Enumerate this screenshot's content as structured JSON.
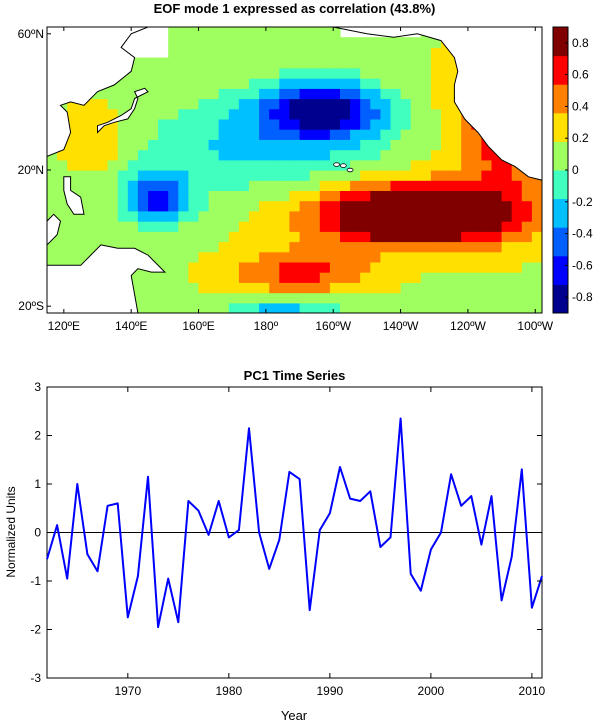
{
  "chart_data": [
    {
      "type": "heatmap",
      "title": "EOF mode 1 expressed as correlation (43.8%)",
      "x_ticks": [
        "120ºE",
        "140ºE",
        "160ºE",
        "180º",
        "160ºW",
        "140ºW",
        "120ºW",
        "100ºW"
      ],
      "y_ticks": [
        "60ºN",
        "20ºN",
        "20ºS"
      ],
      "lon_range": [
        115,
        262
      ],
      "lat_range": [
        -22,
        62
      ],
      "colorbar": {
        "ticks": [
          "0.8",
          "0.6",
          "0.4",
          "0.2",
          "0",
          "-0.2",
          "-0.4",
          "-0.6",
          "-0.8"
        ],
        "range": [
          -0.9,
          0.9
        ],
        "colors": [
          "#00008f",
          "#0000ff",
          "#0060ff",
          "#00c0ff",
          "#40ffbf",
          "#a0ff60",
          "#ffe000",
          "#ff8000",
          "#ff0000",
          "#800000"
        ]
      }
    },
    {
      "type": "line",
      "title": "PC1 Time Series",
      "xlabel": "Year",
      "ylabel": "Normalized Units",
      "xlim": [
        1962,
        2011
      ],
      "ylim": [
        -3,
        3
      ],
      "x_ticks": [
        1970,
        1980,
        1990,
        2000,
        2010
      ],
      "y_ticks": [
        3,
        2,
        1,
        0,
        -1,
        -2,
        -3
      ],
      "color": "#0000ff",
      "x": [
        1962,
        1963,
        1964,
        1965,
        1966,
        1967,
        1968,
        1969,
        1970,
        1971,
        1972,
        1973,
        1974,
        1975,
        1976,
        1977,
        1978,
        1979,
        1980,
        1981,
        1982,
        1983,
        1984,
        1985,
        1986,
        1987,
        1988,
        1989,
        1990,
        1991,
        1992,
        1993,
        1994,
        1995,
        1996,
        1997,
        1998,
        1999,
        2000,
        2001,
        2002,
        2003,
        2004,
        2005,
        2006,
        2007,
        2008,
        2009,
        2010,
        2011
      ],
      "y": [
        -0.55,
        0.15,
        -0.95,
        1.0,
        -0.45,
        -0.8,
        0.55,
        0.6,
        -1.75,
        -0.9,
        1.15,
        -1.95,
        -0.95,
        -1.85,
        0.65,
        0.45,
        -0.05,
        0.65,
        -0.1,
        0.05,
        2.15,
        0.0,
        -0.75,
        -0.15,
        1.25,
        1.1,
        -1.6,
        0.05,
        0.4,
        1.35,
        0.7,
        0.65,
        0.85,
        -0.3,
        -0.1,
        2.35,
        -0.85,
        -1.2,
        -0.35,
        0.0,
        1.2,
        0.55,
        0.75,
        -0.25,
        0.75,
        -1.4,
        -0.5,
        1.3,
        -1.55,
        -0.9
      ]
    }
  ]
}
